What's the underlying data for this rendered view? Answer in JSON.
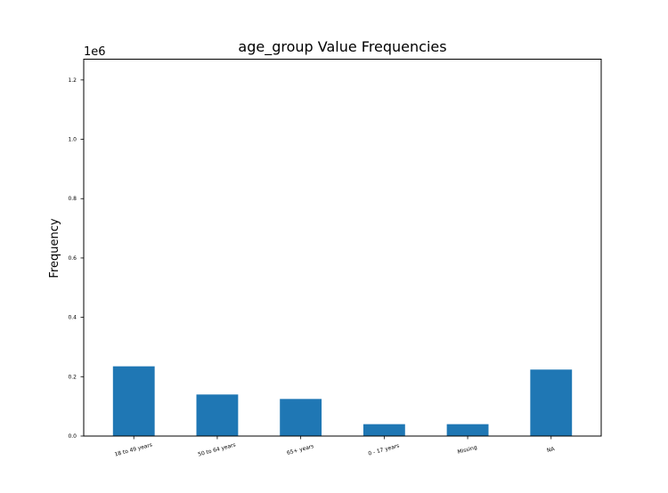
{
  "chart_data": {
    "type": "bar",
    "title": "age_group Value Frequencies",
    "xlabel": "",
    "ylabel": "Frequency",
    "y_multiplier_label": "1e6",
    "categories": [
      "18 to 49 years",
      "50 to 64 years",
      "65+ years",
      "0 - 17 years",
      "Missing",
      "NA"
    ],
    "values": [
      235000,
      140000,
      125000,
      40000,
      40000,
      224000
    ],
    "ylim": [
      0,
      1270000
    ],
    "yticks": [
      0,
      200000,
      400000,
      600000,
      800000,
      1000000,
      1200000
    ],
    "ytick_labels": [
      "0.0",
      "0.2",
      "0.4",
      "0.6",
      "0.8",
      "1.0",
      "1.2"
    ],
    "bar_color": "#1f77b4",
    "grid": false,
    "legend": "none"
  }
}
